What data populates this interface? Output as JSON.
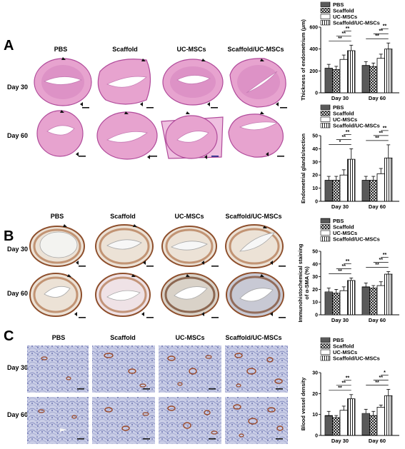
{
  "panels": {
    "A": {
      "letter": "A",
      "groups": [
        "PBS",
        "Scaffold",
        "UC-MSCs",
        "Scaffold/UC-MSCs"
      ],
      "rows": [
        "Day 30",
        "Day 60"
      ]
    },
    "B": {
      "letter": "B",
      "groups": [
        "PBS",
        "Scaffold",
        "UC-MSCs",
        "Scaffold/UC-MSCs"
      ],
      "rows": [
        "Day 30",
        "Day 60"
      ]
    },
    "C": {
      "letter": "C",
      "groups": [
        "PBS",
        "Scaffold",
        "UC-MSCs",
        "Scaffold/UC-MSCs"
      ],
      "rows": [
        "Day 30",
        "Day 60"
      ]
    }
  },
  "colors": {
    "hist_fill": "#e7a3cf",
    "ihc_brown": "#8e4f2c",
    "vessel_bg": "#c9cde6",
    "vessel_dot": "#9a4a2a"
  },
  "chart_data": [
    {
      "type": "bar",
      "ylabel": "Thickness of endometrium (μm)",
      "categories": [
        "Day 30",
        "Day 60"
      ],
      "legend": [
        "PBS",
        "Scaffold",
        "UC-MSCs",
        "Scaffold/UC-MSCs"
      ],
      "ylim": [
        0,
        600
      ],
      "yticks": [
        0,
        200,
        400,
        600
      ],
      "series": [
        {
          "name": "PBS",
          "values": [
            225,
            250
          ],
          "errors": [
            35,
            35
          ]
        },
        {
          "name": "Scaffold",
          "values": [
            212,
            240
          ],
          "errors": [
            30,
            32
          ]
        },
        {
          "name": "UC-MSCs",
          "values": [
            305,
            315
          ],
          "errors": [
            40,
            38
          ]
        },
        {
          "name": "Scaffold/UC-MSCs",
          "values": [
            385,
            400
          ],
          "errors": [
            50,
            55
          ]
        }
      ],
      "significance": "**"
    },
    {
      "type": "bar",
      "ylabel": "Endometrial glands/section",
      "categories": [
        "Day 30",
        "Day 60"
      ],
      "legend": [
        "PBS",
        "Scaffold",
        "UC-MSCs",
        "Scaffold/UC-MSCs"
      ],
      "ylim": [
        0,
        50
      ],
      "yticks": [
        0,
        10,
        20,
        30,
        40,
        50
      ],
      "series": [
        {
          "name": "PBS",
          "values": [
            16,
            16
          ],
          "errors": [
            3,
            3
          ]
        },
        {
          "name": "Scaffold",
          "values": [
            16,
            16
          ],
          "errors": [
            3,
            3
          ]
        },
        {
          "name": "UC-MSCs",
          "values": [
            20,
            21
          ],
          "errors": [
            4,
            4
          ]
        },
        {
          "name": "Scaffold/UC-MSCs",
          "values": [
            32,
            33
          ],
          "errors": [
            8,
            10
          ]
        }
      ],
      "significance": "** / *"
    },
    {
      "type": "bar",
      "ylabel": "Immunohistochemical staining of α-SMA (%)",
      "categories": [
        "Day 30",
        "Day 60"
      ],
      "legend": [
        "PBS",
        "Scaffold",
        "UC-MSCs",
        "Scaffold/UC-MSCs"
      ],
      "ylim": [
        0,
        50
      ],
      "yticks": [
        0,
        10,
        20,
        30,
        40,
        50
      ],
      "series": [
        {
          "name": "PBS",
          "values": [
            18,
            22
          ],
          "errors": [
            3,
            3
          ]
        },
        {
          "name": "Scaffold",
          "values": [
            17,
            21
          ],
          "errors": [
            3,
            2
          ]
        },
        {
          "name": "UC-MSCs",
          "values": [
            19,
            23
          ],
          "errors": [
            3,
            3
          ]
        },
        {
          "name": "Scaffold/UC-MSCs",
          "values": [
            27,
            32
          ],
          "errors": [
            2,
            2
          ]
        }
      ],
      "significance": "**"
    },
    {
      "type": "bar",
      "ylabel": "Blood vessel density",
      "categories": [
        "Day 30",
        "Day 60"
      ],
      "legend": [
        "PBS",
        "Scaffold",
        "UC-MSCs",
        "Scaffold/UC-MSCs"
      ],
      "ylim": [
        0,
        30
      ],
      "yticks": [
        0,
        10,
        20,
        30
      ],
      "series": [
        {
          "name": "PBS",
          "values": [
            9.5,
            10.5
          ],
          "errors": [
            2,
            2
          ]
        },
        {
          "name": "Scaffold",
          "values": [
            8.5,
            9.5
          ],
          "errors": [
            1,
            2
          ]
        },
        {
          "name": "UC-MSCs",
          "values": [
            12,
            13.5
          ],
          "errors": [
            2,
            1
          ]
        },
        {
          "name": "Scaffold/UC-MSCs",
          "values": [
            17.5,
            19
          ],
          "errors": [
            2,
            3
          ]
        }
      ],
      "significance": "** / *"
    }
  ]
}
